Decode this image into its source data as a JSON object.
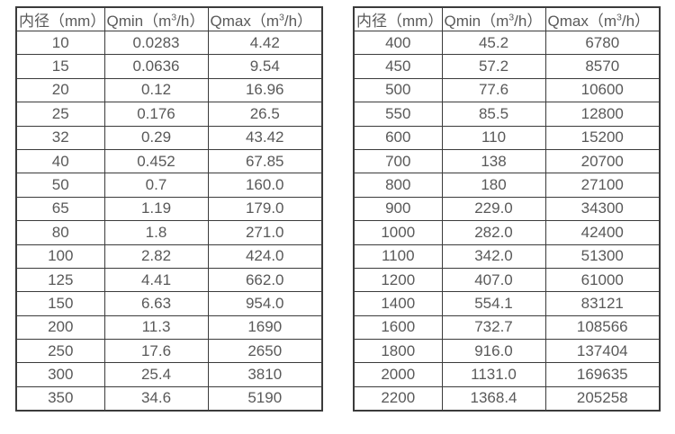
{
  "colors": {
    "background": "#ffffff",
    "border": "#3b3b3b",
    "text": "#595959"
  },
  "tables": [
    {
      "name": "small-diameters",
      "headers": [
        {
          "pre": "内径（mm）",
          "sup": "",
          "post": ""
        },
        {
          "pre": "Qmin（m",
          "sup": "3",
          "post": "/h）"
        },
        {
          "pre": "Qmax（m",
          "sup": "3",
          "post": "/h）"
        }
      ],
      "rows": [
        [
          "10",
          "0.0283",
          "4.42"
        ],
        [
          "15",
          "0.0636",
          "9.54"
        ],
        [
          "20",
          "0.12",
          "16.96"
        ],
        [
          "25",
          "0.176",
          "26.5"
        ],
        [
          "32",
          "0.29",
          "43.42"
        ],
        [
          "40",
          "0.452",
          "67.85"
        ],
        [
          "50",
          "0.7",
          "160.0"
        ],
        [
          "65",
          "1.19",
          "179.0"
        ],
        [
          "80",
          "1.8",
          "271.0"
        ],
        [
          "100",
          "2.82",
          "424.0"
        ],
        [
          "125",
          "4.41",
          "662.0"
        ],
        [
          "150",
          "6.63",
          "954.0"
        ],
        [
          "200",
          "11.3",
          "1690"
        ],
        [
          "250",
          "17.6",
          "2650"
        ],
        [
          "300",
          "25.4",
          "3810"
        ],
        [
          "350",
          "34.6",
          "5190"
        ]
      ]
    },
    {
      "name": "large-diameters",
      "headers": [
        {
          "pre": "内径（mm）",
          "sup": "",
          "post": ""
        },
        {
          "pre": "Qmin（m",
          "sup": "3",
          "post": "/h）"
        },
        {
          "pre": "Qmax（m",
          "sup": "3",
          "post": "/h）"
        }
      ],
      "rows": [
        [
          "400",
          "45.2",
          "6780"
        ],
        [
          "450",
          "57.2",
          "8570"
        ],
        [
          "500",
          "77.6",
          "10600"
        ],
        [
          "550",
          "85.5",
          "12800"
        ],
        [
          "600",
          "110",
          "15200"
        ],
        [
          "700",
          "138",
          "20700"
        ],
        [
          "800",
          "180",
          "27100"
        ],
        [
          "900",
          "229.0",
          "34300"
        ],
        [
          "1000",
          "282.0",
          "42400"
        ],
        [
          "1100",
          "342.0",
          "51300"
        ],
        [
          "1200",
          "407.0",
          "61000"
        ],
        [
          "1400",
          "554.1",
          "83121"
        ],
        [
          "1600",
          "732.7",
          "108566"
        ],
        [
          "1800",
          "916.0",
          "137404"
        ],
        [
          "2000",
          "1131.0",
          "169635"
        ],
        [
          "2200",
          "1368.4",
          "205258"
        ]
      ]
    }
  ]
}
